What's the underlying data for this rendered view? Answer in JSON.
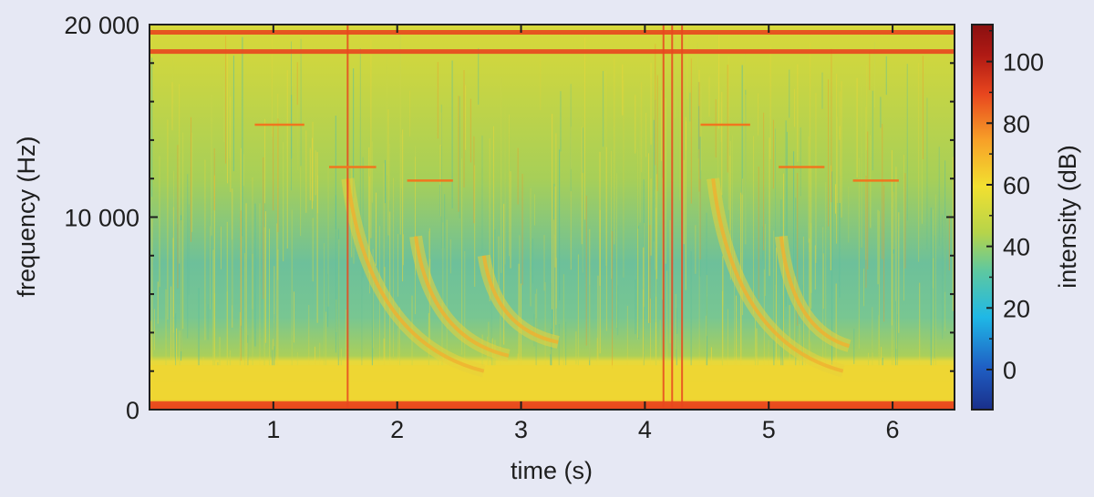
{
  "chart_data": {
    "type": "heatmap",
    "title": "",
    "xlabel": "time (s)",
    "ylabel": "frequency (Hz)",
    "xlim": [
      0,
      6.5
    ],
    "ylim": [
      0,
      20000
    ],
    "x_ticks": [
      1,
      2,
      3,
      4,
      5,
      6
    ],
    "x_tick_labels": [
      "1",
      "2",
      "3",
      "4",
      "5",
      "6"
    ],
    "y_ticks": [
      0,
      10000,
      20000
    ],
    "y_tick_labels": [
      "0",
      "10 000",
      "20 000"
    ],
    "colorbar": {
      "label": "intensity (dB)",
      "range": [
        -13,
        112
      ],
      "ticks": [
        0,
        20,
        40,
        60,
        80,
        100
      ],
      "tick_labels": [
        "0",
        "20",
        "40",
        "60",
        "80",
        "100"
      ],
      "colormap": [
        "#1a2f8a",
        "#1f5fc4",
        "#1fb8e6",
        "#5ec8a0",
        "#b6d44a",
        "#f2e030",
        "#f7a028",
        "#e8461e",
        "#b01a14",
        "#8a1010"
      ]
    },
    "features": {
      "horizontal_bands": [
        {
          "frequency_hz": 18600,
          "intensity_db": 85
        },
        {
          "frequency_hz": 19600,
          "intensity_db": 80
        },
        {
          "frequency_hz": 200,
          "intensity_db": 90
        }
      ],
      "low_band_hz": [
        0,
        2300
      ],
      "vertical_transients_s": [
        1.6,
        4.15,
        4.22,
        4.3
      ],
      "tone_segments": [
        {
          "t_start": 0.85,
          "t_end": 1.25,
          "frequency_hz": 14800
        },
        {
          "t_start": 1.45,
          "t_end": 1.83,
          "frequency_hz": 12600
        },
        {
          "t_start": 2.08,
          "t_end": 2.45,
          "frequency_hz": 11900
        },
        {
          "t_start": 4.45,
          "t_end": 4.85,
          "frequency_hz": 14800
        },
        {
          "t_start": 5.08,
          "t_end": 5.45,
          "frequency_hz": 12600
        },
        {
          "t_start": 5.68,
          "t_end": 6.05,
          "frequency_hz": 11900
        }
      ],
      "chirps": [
        {
          "t0": 1.6,
          "f_start_hz": 12000,
          "t_end": 2.7,
          "f_end_hz": 2000
        },
        {
          "t0": 2.15,
          "f_start_hz": 9000,
          "t_end": 2.9,
          "f_end_hz": 2800
        },
        {
          "t0": 2.7,
          "f_start_hz": 8000,
          "t_end": 3.3,
          "f_end_hz": 3500
        },
        {
          "t0": 4.55,
          "f_start_hz": 12000,
          "t_end": 5.6,
          "f_end_hz": 2000
        },
        {
          "t0": 5.1,
          "f_start_hz": 9000,
          "t_end": 5.65,
          "f_end_hz": 3300
        }
      ]
    }
  }
}
